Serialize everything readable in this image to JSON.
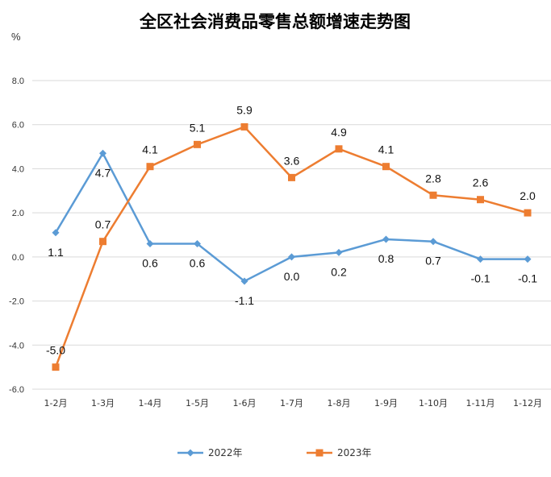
{
  "chart_data": {
    "type": "line",
    "title": "全区社会消费品零售总额增速走势图",
    "unit": "%",
    "categories": [
      "1-2月",
      "1-3月",
      "1-4月",
      "1-5月",
      "1-6月",
      "1-7月",
      "1-8月",
      "1-9月",
      "1-10月",
      "1-11月",
      "1-12月"
    ],
    "ylim": [
      -6,
      8
    ],
    "yticks": [
      "8.0",
      "6.0",
      "4.0",
      "2.0",
      "0.0",
      "-2.0",
      "-4.0",
      "-6.0"
    ],
    "ytick_values": [
      8,
      6,
      4,
      2,
      0,
      -2,
      -4,
      -6
    ],
    "grid": true,
    "legend": "bottom",
    "series": [
      {
        "name": "2022年",
        "color": "#5B9BD5",
        "marker": "diamond",
        "values": [
          1.1,
          4.7,
          0.6,
          0.6,
          -1.1,
          0.0,
          0.2,
          0.8,
          0.7,
          -0.1,
          -0.1
        ],
        "labels": [
          "1.1",
          "4.7",
          "0.6",
          "0.6",
          "-1.1",
          "0.0",
          "0.2",
          "0.8",
          "0.7",
          "-0.1",
          "-0.1"
        ]
      },
      {
        "name": "2023年",
        "color": "#ED7D31",
        "marker": "square",
        "values": [
          -5.0,
          0.7,
          4.1,
          5.1,
          5.9,
          3.6,
          4.9,
          4.1,
          2.8,
          2.6,
          2.0
        ],
        "labels": [
          "-5.0",
          "0.7",
          "4.1",
          "5.1",
          "5.9",
          "3.6",
          "4.9",
          "4.1",
          "2.8",
          "2.6",
          "2.0"
        ]
      }
    ]
  }
}
